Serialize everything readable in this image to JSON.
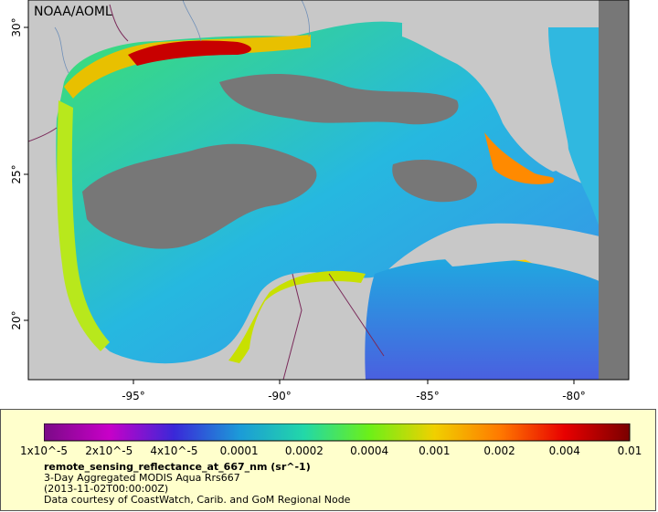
{
  "map": {
    "credit": "NOAA/AOML",
    "lon_ticks": [
      "-95°",
      "-90°",
      "-85°",
      "-80°"
    ],
    "lat_ticks": [
      "30°",
      "25°",
      "20°"
    ],
    "ocean_missing_color": "#777777",
    "land_color": "#c8c8c8",
    "border_color": "#7a2a5a",
    "river_color": "#6f8fb8"
  },
  "legend": {
    "ticks": [
      "1x10^-5",
      "2x10^-5",
      "4x10^-5",
      "0.0001",
      "0.0002",
      "0.0004",
      "0.001",
      "0.002",
      "0.004",
      "0.01"
    ],
    "colors": [
      "#7a0a86",
      "#c800c8",
      "#3a28d8",
      "#1c9ad8",
      "#22d8a8",
      "#6cf018",
      "#f0d000",
      "#ff7a00",
      "#e80000",
      "#7a0000"
    ],
    "variable": "remote_sensing_reflectance_at_667_nm (sr^-1)",
    "line1": "3-Day Aggregated MODIS Aqua Rrs667",
    "line2": "(2013-11-02T00:00:00Z)",
    "line3": "Data courtesy of CoastWatch, Carib. and GoM Regional Node"
  }
}
